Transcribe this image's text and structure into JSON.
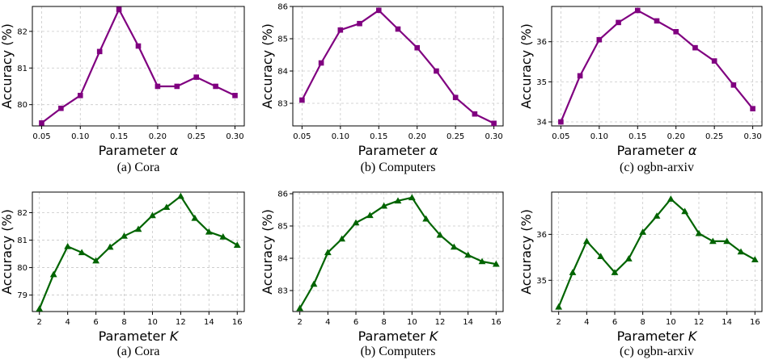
{
  "chart_data": [
    {
      "type": "line",
      "id": "a-cora-alpha",
      "caption": "(a) Cora",
      "xlabel": "Parameter",
      "xsymbol": "α",
      "ylabel": "Accuracy (%)",
      "x": [
        0.05,
        0.075,
        0.1,
        0.125,
        0.15,
        0.175,
        0.2,
        0.225,
        0.25,
        0.275,
        0.3
      ],
      "values": [
        79.5,
        79.9,
        80.25,
        81.45,
        82.6,
        81.6,
        80.5,
        80.5,
        80.75,
        80.5,
        80.25
      ],
      "xlim": [
        0.038,
        0.312
      ],
      "ylim": [
        79.42,
        82.68
      ],
      "xticks": [
        "0.05",
        "0.10",
        "0.15",
        "0.20",
        "0.25",
        "0.30"
      ],
      "yticks": [
        "80",
        "81",
        "82"
      ],
      "color": "#800080",
      "marker": "square"
    },
    {
      "type": "line",
      "id": "b-computers-alpha",
      "caption": "(b) Computers",
      "xlabel": "Parameter",
      "xsymbol": "α",
      "ylabel": "Accuracy (%)",
      "x": [
        0.05,
        0.075,
        0.1,
        0.125,
        0.15,
        0.175,
        0.2,
        0.225,
        0.25,
        0.275,
        0.3
      ],
      "values": [
        83.1,
        84.25,
        85.27,
        85.47,
        85.88,
        85.3,
        84.72,
        84.0,
        83.18,
        82.67,
        82.38
      ],
      "xlim": [
        0.038,
        0.312
      ],
      "ylim": [
        82.3,
        86.0
      ],
      "xticks": [
        "0.05",
        "0.10",
        "0.15",
        "0.20",
        "0.25",
        "0.30"
      ],
      "yticks": [
        "83",
        "84",
        "85",
        "86"
      ],
      "color": "#800080",
      "marker": "square"
    },
    {
      "type": "line",
      "id": "c-arxiv-alpha",
      "caption": "(c) ogbn-arxiv",
      "xlabel": "Parameter",
      "xsymbol": "α",
      "ylabel": "Accuracy (%)",
      "x": [
        0.05,
        0.075,
        0.1,
        0.125,
        0.15,
        0.175,
        0.2,
        0.225,
        0.25,
        0.275,
        0.3
      ],
      "values": [
        34.0,
        35.15,
        36.05,
        36.48,
        36.78,
        36.52,
        36.25,
        35.85,
        35.52,
        34.92,
        34.33
      ],
      "xlim": [
        0.038,
        0.312
      ],
      "ylim": [
        33.9,
        36.88
      ],
      "xticks": [
        "0.05",
        "0.10",
        "0.15",
        "0.20",
        "0.25",
        "0.30"
      ],
      "yticks": [
        "34",
        "35",
        "36"
      ],
      "color": "#800080",
      "marker": "square"
    },
    {
      "type": "line",
      "id": "a-cora-k",
      "caption": "(a) Cora",
      "xlabel": "Parameter",
      "xsymbol": "K",
      "ylabel": "Accuracy (%)",
      "x": [
        2,
        3,
        4,
        5,
        6,
        7,
        8,
        9,
        10,
        11,
        12,
        13,
        14,
        15,
        16
      ],
      "values": [
        78.5,
        79.75,
        80.77,
        80.55,
        80.25,
        80.75,
        81.15,
        81.4,
        81.9,
        82.2,
        82.6,
        81.8,
        81.3,
        81.12,
        80.82
      ],
      "xlim": [
        1.5,
        16.5
      ],
      "ylim": [
        78.4,
        82.75
      ],
      "xticks": [
        "2",
        "4",
        "6",
        "8",
        "10",
        "12",
        "14",
        "16"
      ],
      "yticks": [
        "79",
        "80",
        "81",
        "82"
      ],
      "color": "#006400",
      "marker": "triangle"
    },
    {
      "type": "line",
      "id": "b-computers-k",
      "caption": "(b) Computers",
      "xlabel": "Parameter",
      "xsymbol": "K",
      "ylabel": "Accuracy (%)",
      "x": [
        2,
        3,
        4,
        5,
        6,
        7,
        8,
        9,
        10,
        11,
        12,
        13,
        14,
        15,
        16
      ],
      "values": [
        82.45,
        83.2,
        84.18,
        84.6,
        85.1,
        85.33,
        85.62,
        85.78,
        85.88,
        85.22,
        84.72,
        84.35,
        84.1,
        83.9,
        83.82
      ],
      "xlim": [
        1.5,
        16.5
      ],
      "ylim": [
        82.35,
        86.05
      ],
      "xticks": [
        "2",
        "4",
        "6",
        "8",
        "10",
        "12",
        "14",
        "16"
      ],
      "yticks": [
        "83",
        "84",
        "85",
        "86"
      ],
      "color": "#006400",
      "marker": "triangle"
    },
    {
      "type": "line",
      "id": "c-arxiv-k",
      "caption": "(c) ogbn-arxiv",
      "xlabel": "Parameter",
      "xsymbol": "K",
      "ylabel": "Accuracy (%)",
      "x": [
        2,
        3,
        4,
        5,
        6,
        7,
        8,
        9,
        10,
        11,
        12,
        13,
        14,
        15,
        16
      ],
      "values": [
        34.42,
        35.17,
        35.85,
        35.52,
        35.17,
        35.47,
        36.05,
        36.4,
        36.77,
        36.5,
        36.02,
        35.85,
        35.85,
        35.62,
        35.45
      ],
      "xlim": [
        1.5,
        16.5
      ],
      "ylim": [
        34.32,
        36.92
      ],
      "xticks": [
        "2",
        "4",
        "6",
        "8",
        "10",
        "12",
        "14",
        "16"
      ],
      "yticks": [
        "35",
        "36"
      ],
      "color": "#006400",
      "marker": "triangle"
    }
  ]
}
